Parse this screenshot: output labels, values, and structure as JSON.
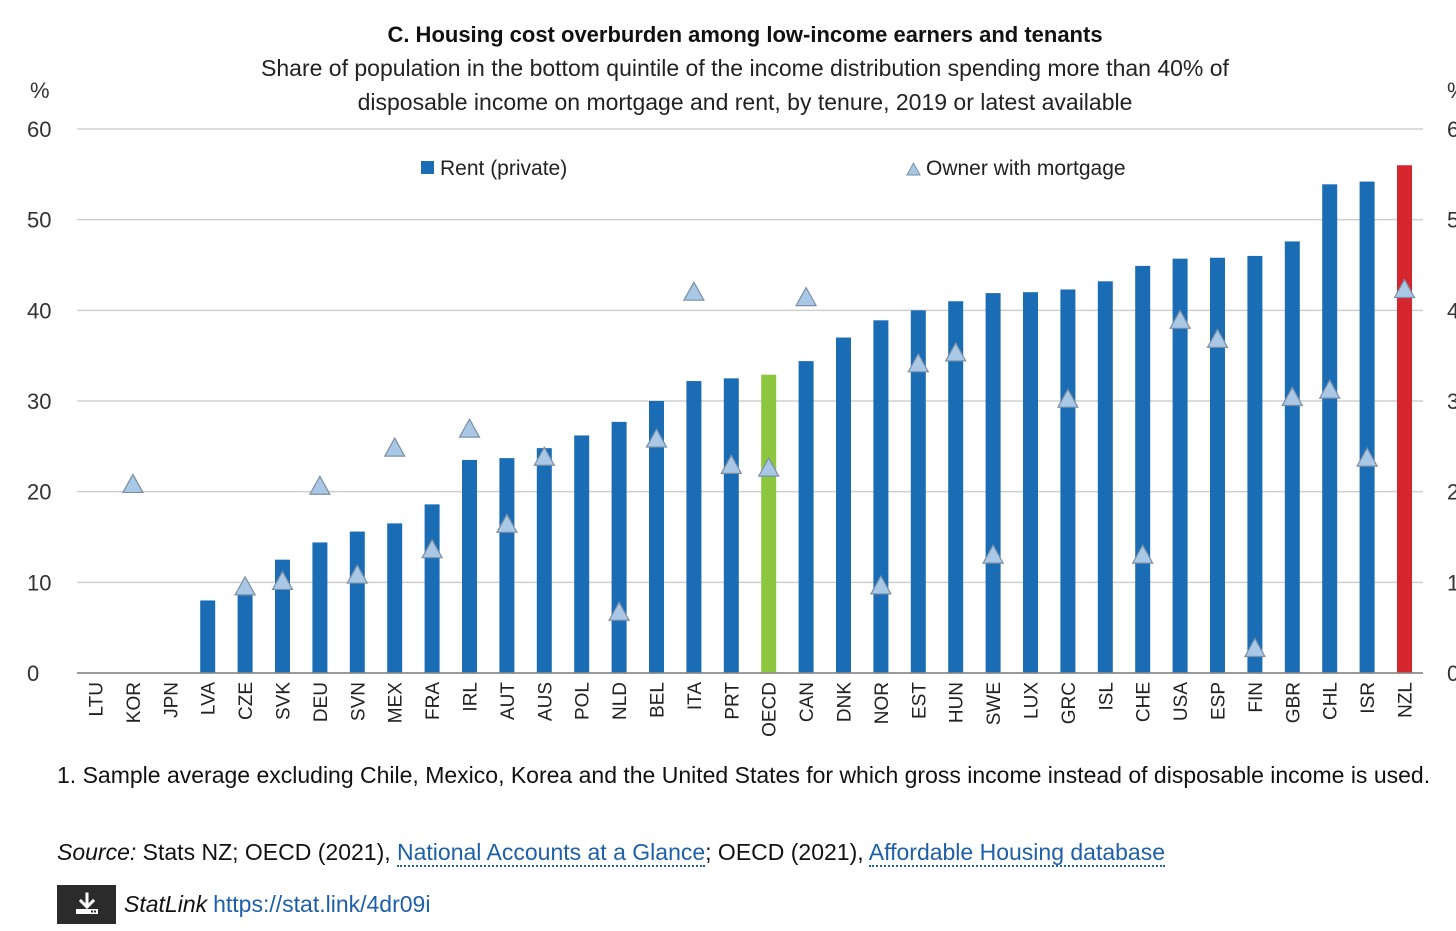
{
  "chart_data": {
    "type": "bar",
    "title": "C. Housing cost overburden among low-income earners and tenants",
    "subtitle_lines": [
      "Share of population in the bottom quintile of the income distribution spending more than 40% of",
      "disposable income on mortgage and rent, by tenure, 2019 or latest available"
    ],
    "y_unit_label_left": "%",
    "y_unit_label_right": "%",
    "ylim": [
      0,
      60
    ],
    "yticks": [
      0,
      10,
      20,
      30,
      40,
      50,
      60
    ],
    "grid": true,
    "legend_placement": "top",
    "categories": [
      "LTU",
      "KOR",
      "JPN",
      "LVA",
      "CZE",
      "SVK",
      "DEU",
      "SVN",
      "MEX",
      "FRA",
      "IRL",
      "AUT",
      "AUS",
      "POL",
      "NLD",
      "BEL",
      "ITA",
      "PRT",
      "OECD",
      "CAN",
      "DNK",
      "NOR",
      "EST",
      "HUN",
      "SWE",
      "LUX",
      "GRC",
      "ISL",
      "CHE",
      "USA",
      "ESP",
      "FIN",
      "GBR",
      "CHL",
      "ISR",
      "NZL"
    ],
    "series": [
      {
        "name": "Rent (private)",
        "kind": "bar",
        "color": "#1a6db5",
        "values": [
          null,
          null,
          null,
          8.0,
          9.0,
          12.5,
          14.4,
          15.6,
          16.5,
          18.6,
          23.5,
          23.7,
          24.8,
          26.2,
          27.7,
          30.0,
          32.2,
          32.5,
          32.9,
          34.4,
          37.0,
          38.9,
          40.0,
          41.0,
          41.9,
          42.0,
          42.3,
          43.2,
          44.9,
          45.7,
          45.8,
          46.0,
          47.6,
          53.9,
          54.2,
          56.0
        ],
        "highlight": {
          "OECD": "#8dc63f",
          "NZL": "#d6262d"
        }
      },
      {
        "name": "Owner with mortgage",
        "kind": "marker",
        "marker": "triangle",
        "color": "#a9c8e6",
        "values": [
          null,
          20.8,
          null,
          null,
          9.5,
          10.1,
          20.6,
          10.8,
          24.8,
          13.6,
          26.9,
          16.4,
          23.8,
          null,
          6.7,
          25.8,
          42.0,
          22.9,
          22.6,
          41.4,
          null,
          9.6,
          34.1,
          35.3,
          13.0,
          null,
          30.2,
          null,
          13.0,
          38.9,
          36.8,
          2.7,
          30.4,
          31.2,
          23.7,
          42.3
        ]
      }
    ]
  },
  "footnote": "1. Sample average excluding Chile, Mexico, Korea and the United States for which gross income instead of disposable income is used.",
  "source": {
    "label": "Source:",
    "text_1": " Stats NZ; OECD (2021), ",
    "link_1": "National Accounts at a Glance",
    "text_2": "; OECD (2021), ",
    "link_2": "Affordable Housing database"
  },
  "statlink": {
    "label": "StatLink",
    "url": "https://stat.link/4dr09i",
    "icon": "download-icon"
  }
}
